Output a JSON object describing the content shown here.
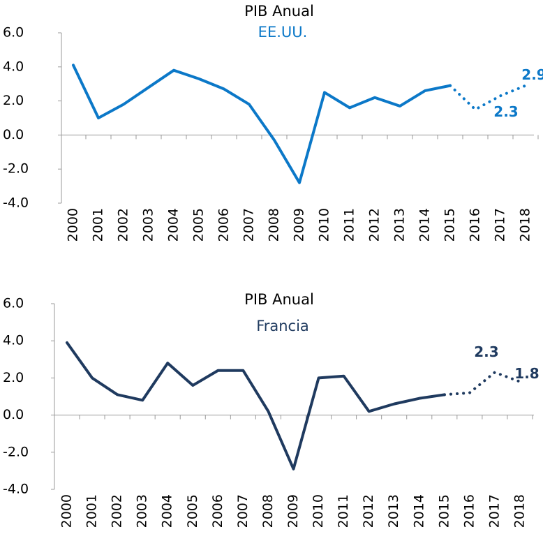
{
  "chart_data": [
    {
      "type": "line",
      "title": "PIB Anual",
      "subtitle": "EE.UU.",
      "subtitle_color": "#0b78c8",
      "categories": [
        "2000",
        "2001",
        "2002",
        "2003",
        "2004",
        "2005",
        "2006",
        "2007",
        "2008",
        "2009",
        "2010",
        "2011",
        "2012",
        "2013",
        "2014",
        "2015",
        "2016",
        "2017",
        "2018"
      ],
      "series": [
        {
          "color": "#0b78c8",
          "style": "solid",
          "values": [
            4.1,
            1.0,
            1.8,
            2.8,
            3.8,
            3.3,
            2.7,
            1.8,
            -0.3,
            -2.8,
            2.5,
            1.6,
            2.2,
            1.7,
            2.6,
            2.9,
            null,
            null,
            null
          ]
        },
        {
          "color": "#0b78c8",
          "style": "dotted",
          "values": [
            null,
            null,
            null,
            null,
            null,
            null,
            null,
            null,
            null,
            null,
            null,
            null,
            null,
            null,
            null,
            2.9,
            1.5,
            2.3,
            2.9
          ],
          "value_labels": [
            null,
            null,
            null,
            null,
            null,
            null,
            null,
            null,
            null,
            null,
            null,
            null,
            null,
            null,
            null,
            null,
            null,
            "2.3",
            "2.9"
          ]
        }
      ],
      "ylim": [
        -4,
        6
      ],
      "yticks": [
        {
          "value": -4,
          "label": "-4.0"
        },
        {
          "value": -2,
          "label": "-2.0"
        },
        {
          "value": 0,
          "label": "0.0"
        },
        {
          "value": 2,
          "label": "2.0"
        },
        {
          "value": 4,
          "label": "4.0"
        },
        {
          "value": 6,
          "label": "6.0"
        }
      ]
    },
    {
      "type": "line",
      "title": "PIB Anual",
      "subtitle": "Francia",
      "subtitle_color": "#1f3a5f",
      "categories": [
        "2000",
        "2001",
        "2002",
        "2003",
        "2004",
        "2005",
        "2006",
        "2007",
        "2008",
        "2009",
        "2010",
        "2011",
        "2012",
        "2013",
        "2014",
        "2015",
        "2016",
        "2017",
        "2018"
      ],
      "series": [
        {
          "color": "#1f3a5f",
          "style": "solid",
          "values": [
            3.9,
            2.0,
            1.1,
            0.8,
            2.8,
            1.6,
            2.4,
            2.4,
            0.2,
            -2.9,
            2.0,
            2.1,
            0.2,
            0.6,
            0.9,
            1.1,
            null,
            null,
            null
          ]
        },
        {
          "color": "#1f3a5f",
          "style": "dotted",
          "values": [
            null,
            null,
            null,
            null,
            null,
            null,
            null,
            null,
            null,
            null,
            null,
            null,
            null,
            null,
            null,
            1.1,
            1.2,
            2.3,
            1.8
          ],
          "value_labels": [
            null,
            null,
            null,
            null,
            null,
            null,
            null,
            null,
            null,
            null,
            null,
            null,
            null,
            null,
            null,
            null,
            null,
            "2.3",
            "1.8"
          ]
        }
      ],
      "ylim": [
        -4,
        6
      ],
      "yticks": [
        {
          "value": -4,
          "label": "-4.0"
        },
        {
          "value": -2,
          "label": "-2.0"
        },
        {
          "value": 0,
          "label": "0.0"
        },
        {
          "value": 2,
          "label": "2.0"
        },
        {
          "value": 4,
          "label": "4.0"
        },
        {
          "value": 6,
          "label": "6.0"
        }
      ]
    }
  ]
}
